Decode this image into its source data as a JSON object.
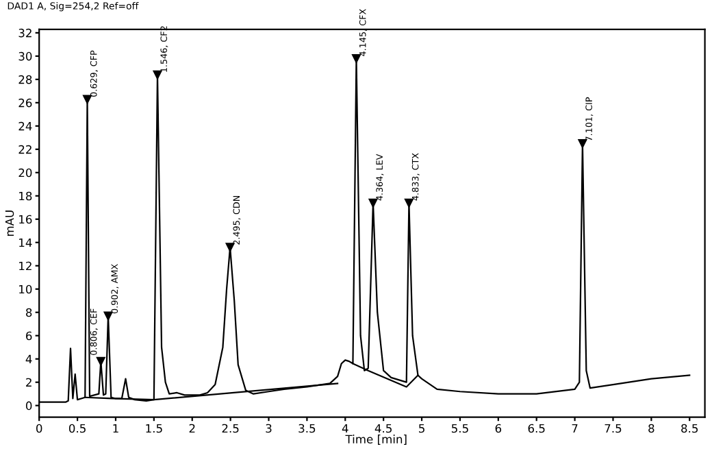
{
  "chart_data": {
    "type": "line",
    "title": "DAD1 A, Sig=254,2 Ref=off",
    "xlabel": "Time [min]",
    "ylabel": "mAU",
    "xlim": [
      0,
      8.7
    ],
    "ylim": [
      -1,
      32.3
    ],
    "xticks": [
      0,
      0.5,
      1,
      1.5,
      2,
      2.5,
      3,
      3.5,
      4,
      4.5,
      5,
      5.5,
      6,
      6.5,
      7,
      7.5,
      8,
      8.5
    ],
    "yticks": [
      0,
      2,
      4,
      6,
      8,
      10,
      12,
      14,
      16,
      18,
      20,
      22,
      24,
      26,
      28,
      30,
      32
    ],
    "grid": false,
    "marker": "none",
    "line_style": "solid",
    "series": [
      {
        "color": "#000000",
        "x": [
          0,
          0.35,
          0.38,
          0.41,
          0.44,
          0.47,
          0.5,
          0.55,
          0.6,
          0.629,
          0.66,
          0.72,
          0.78,
          0.806,
          0.84,
          0.87,
          0.902,
          0.94,
          1.0,
          1.08,
          1.13,
          1.17,
          1.25,
          1.4,
          1.5,
          1.546,
          1.6,
          1.65,
          1.7,
          1.8,
          1.9,
          2.0,
          2.1,
          2.2,
          2.3,
          2.4,
          2.45,
          2.495,
          2.55,
          2.6,
          2.7,
          2.8,
          3.0,
          3.2,
          3.5,
          3.8,
          3.9,
          3.95,
          4.0,
          4.05,
          4.1,
          4.145,
          4.2,
          4.25,
          4.3,
          4.364,
          4.42,
          4.5,
          4.6,
          4.8,
          4.833,
          4.88,
          4.95,
          5.0,
          5.2,
          5.5,
          6.0,
          6.5,
          7.0,
          7.06,
          7.101,
          7.15,
          7.2,
          7.5,
          8.0,
          8.5
        ],
        "values": [
          0.3,
          0.3,
          0.4,
          4.9,
          0.6,
          2.7,
          0.5,
          0.6,
          0.7,
          26.3,
          0.8,
          0.9,
          1.0,
          3.8,
          0.9,
          1.0,
          7.7,
          0.7,
          0.6,
          0.6,
          2.3,
          0.7,
          0.5,
          0.4,
          0.5,
          28.4,
          5,
          2,
          1.0,
          1.1,
          0.9,
          0.9,
          0.9,
          1.1,
          1.8,
          5,
          10,
          13.6,
          9,
          3.5,
          1.3,
          1.0,
          1.2,
          1.4,
          1.6,
          1.9,
          2.5,
          3.6,
          3.9,
          3.8,
          3.6,
          29.8,
          6,
          3.0,
          3.2,
          17.4,
          8,
          3.0,
          2.4,
          2.0,
          17.4,
          6,
          2.6,
          2.3,
          1.4,
          1.2,
          1.0,
          1.0,
          1.4,
          2,
          22.5,
          3,
          1.5,
          1.8,
          2.3,
          2.6
        ]
      },
      {
        "color": "#000000",
        "x": [
          0.6,
          0.95,
          1.5,
          3.9
        ],
        "values": [
          0.7,
          0.6,
          0.5,
          1.9
        ]
      },
      {
        "color": "#000000",
        "x": [
          4.1,
          4.3,
          4.8,
          4.95
        ],
        "values": [
          3.6,
          3.0,
          1.6,
          2.6
        ]
      }
    ],
    "annotations": [
      {
        "text": "0.629, CFP",
        "x": 0.629,
        "y": 26.3
      },
      {
        "text": "0.806, CEF",
        "x": 0.806,
        "y": 3.8
      },
      {
        "text": "0.902, AMX",
        "x": 0.902,
        "y": 7.7
      },
      {
        "text": "1.546, CF2",
        "x": 1.546,
        "y": 28.4
      },
      {
        "text": "2.495, CDN",
        "x": 2.495,
        "y": 13.6
      },
      {
        "text": "4.145, CFX",
        "x": 4.145,
        "y": 29.8
      },
      {
        "text": "4.364, LEV",
        "x": 4.364,
        "y": 17.4
      },
      {
        "text": "4.833, CTX",
        "x": 4.833,
        "y": 17.4
      },
      {
        "text": "7.101, CIP",
        "x": 7.101,
        "y": 22.5
      }
    ]
  }
}
